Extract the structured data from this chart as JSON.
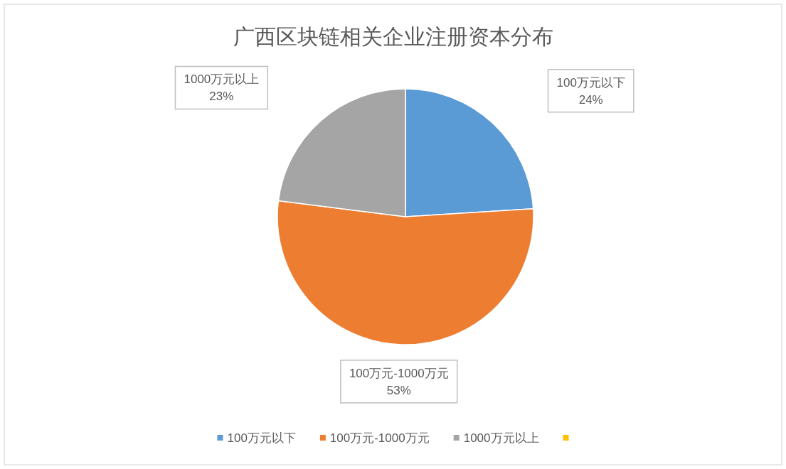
{
  "chart_data": {
    "type": "pie",
    "title": "广西区块链相关企业注册资本分布",
    "categories": [
      "100万元以下",
      "100万元-1000万元",
      "1000万元以上",
      null
    ],
    "values": [
      24,
      53,
      23,
      0
    ],
    "colors": [
      "#5b9bd5",
      "#ed7d31",
      "#a5a5a5",
      "#ffc000"
    ],
    "value_labels": [
      "24%",
      "53%",
      "23%",
      null
    ],
    "legend": "bottom"
  }
}
